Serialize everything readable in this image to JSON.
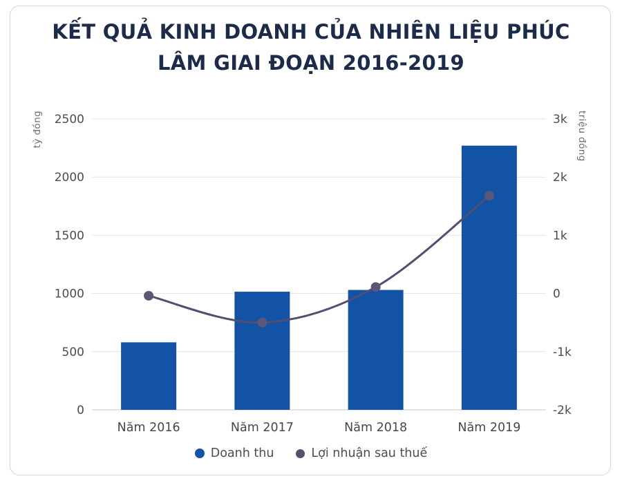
{
  "title": {
    "line1": "KẾT QUẢ KINH DOANH CỦA NHIÊN LIỆU PHÚC",
    "line2": "LÂM GIAI ĐOẠN 2016-2019"
  },
  "chart_data": {
    "type": "bar",
    "subtype": "combo-bar-line-dual-axis",
    "title": "KẾT QUẢ KINH DOANH CỦA NHIÊN LIỆU PHÚC LÂM GIAI ĐOẠN 2016-2019",
    "categories": [
      "Năm 2016",
      "Năm 2017",
      "Năm 2018",
      "Năm 2019"
    ],
    "series": [
      {
        "name": "Doanh thu",
        "type": "bar",
        "axis": "left",
        "values": [
          580,
          1015,
          1030,
          2270
        ],
        "color": "#1253a6"
      },
      {
        "name": "Lợi nhuận sau thuế",
        "type": "line",
        "axis": "right",
        "values": [
          -40,
          -500,
          110,
          1680
        ],
        "color": "#514e70",
        "point_color": "#5b5776"
      }
    ],
    "left_axis": {
      "label": "tỷ đồng",
      "min": 0,
      "max": 2500,
      "tick_values": [
        0,
        500,
        1000,
        1500,
        2000,
        2500
      ],
      "tick_labels": [
        "0",
        "500",
        "1000",
        "1500",
        "2000",
        "2500"
      ]
    },
    "right_axis": {
      "label": "triệu đồng",
      "min": -2000,
      "max": 3000,
      "tick_values": [
        -2000,
        -1000,
        0,
        1000,
        2000,
        3000
      ],
      "tick_labels": [
        "-2k",
        "-1k",
        "0",
        "1k",
        "2k",
        "3k"
      ]
    },
    "legend": [
      {
        "label": "Doanh thu",
        "color": "#1253a6"
      },
      {
        "label": "Lợi nhuận sau thuế",
        "color": "#54516f"
      }
    ],
    "grid": true,
    "legend_position": "bottom"
  },
  "colors": {
    "title": "#1c2b4a",
    "bar": "#1253a6",
    "line": "#514e70",
    "grid": "#e4e4e4",
    "baseline": "#c7c7c7",
    "tick_text": "#4b4b55",
    "card_border": "#d6d6d6"
  }
}
